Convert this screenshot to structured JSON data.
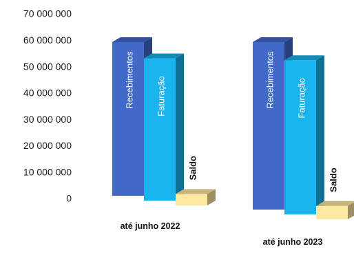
{
  "chart_data": {
    "type": "bar",
    "style": "3d-column",
    "categories": [
      "até junho 2022",
      "até junho 2023"
    ],
    "series": [
      {
        "name": "Recebimentos",
        "values": [
          63200000,
          63000000
        ],
        "color": "#4169C8"
      },
      {
        "name": "Faturação",
        "values": [
          58500000,
          58000000
        ],
        "color": "#19B3EE"
      },
      {
        "name": "Saldo",
        "values": [
          4700000,
          5000000
        ],
        "color": "#FCE8A0"
      }
    ],
    "ylim": [
      0,
      70000000
    ],
    "yticks": [
      "0",
      "10 000 000",
      "20 000 000",
      "30 000 000",
      "40 000 000",
      "50 000 000",
      "60 000 000",
      "70 000 000"
    ],
    "title": "",
    "xlabel": "",
    "ylabel": "",
    "grid": false,
    "legend": "none"
  }
}
